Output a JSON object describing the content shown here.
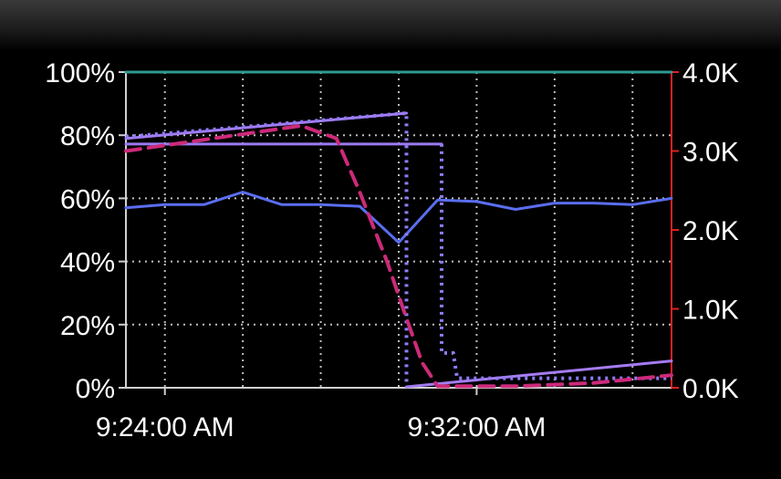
{
  "chart_data": {
    "type": "line",
    "title": "",
    "xlabel": "",
    "ylabel_left": "",
    "ylabel_right": "",
    "x_tick_labels": [
      "9:24:00 AM",
      "9:32:00 AM"
    ],
    "y_left": {
      "min": 0,
      "max": 100,
      "tick_labels": [
        "100%",
        "80%",
        "60%",
        "40%",
        "20%",
        "0%"
      ],
      "tick_values": [
        100,
        80,
        60,
        40,
        20,
        0
      ]
    },
    "y_right": {
      "min": 0,
      "max": 4000,
      "tick_labels": [
        "4.0K",
        "3.0K",
        "2.0K",
        "1.0K",
        "0.0K"
      ],
      "tick_values": [
        4000,
        3000,
        2000,
        1000,
        0
      ]
    },
    "x_range_minutes": [
      0,
      14
    ],
    "grid": true,
    "legend": "none",
    "series": [
      {
        "axis": "left",
        "style": "solid",
        "color": "#2f9a8e",
        "width": 3,
        "points": [
          [
            0,
            100
          ],
          [
            14,
            100
          ]
        ]
      },
      {
        "axis": "left",
        "style": "solid",
        "color": "#5a6ef0",
        "width": 3,
        "points": [
          [
            0,
            57
          ],
          [
            1,
            58
          ],
          [
            2,
            58
          ],
          [
            3,
            62
          ],
          [
            4,
            58
          ],
          [
            5,
            58
          ],
          [
            6,
            57.5
          ],
          [
            7,
            46
          ],
          [
            8,
            59.5
          ],
          [
            9,
            59
          ],
          [
            10,
            56.5
          ],
          [
            11,
            58.5
          ],
          [
            12,
            58.5
          ],
          [
            13,
            58
          ],
          [
            14,
            60
          ]
        ]
      },
      {
        "axis": "left",
        "style": "solid",
        "color": "#a57cf5",
        "width": 3,
        "points": [
          [
            0,
            79
          ],
          [
            7.2,
            87
          ]
        ]
      },
      {
        "axis": "left",
        "style": "solid",
        "color": "#a57cf5",
        "width": 3,
        "points": [
          [
            7.2,
            0.3
          ],
          [
            14,
            8.5
          ]
        ]
      },
      {
        "axis": "left",
        "style": "solid",
        "color": "#9b7af2",
        "width": 3,
        "points": [
          [
            0,
            77.2
          ],
          [
            8.1,
            77.2
          ]
        ]
      },
      {
        "axis": "left",
        "style": "dotted",
        "color": "#8e7cf5",
        "width": 4,
        "points": [
          [
            0,
            79.5
          ],
          [
            7.2,
            87
          ],
          [
            7.2,
            3
          ],
          [
            7.2,
            0.5
          ]
        ]
      },
      {
        "axis": "left",
        "style": "dotted",
        "color": "#8e7cf5",
        "width": 4,
        "points": [
          [
            8.1,
            77.2
          ],
          [
            8.1,
            11
          ],
          [
            8.4,
            11
          ],
          [
            8.5,
            3
          ],
          [
            14,
            3
          ]
        ]
      },
      {
        "axis": "left",
        "style": "dashed",
        "color": "#cc2a7a",
        "width": 4,
        "points": [
          [
            0,
            75
          ],
          [
            4.5,
            83
          ],
          [
            5.4,
            79
          ],
          [
            6.0,
            62
          ],
          [
            6.7,
            40
          ],
          [
            7.2,
            22
          ],
          [
            7.6,
            8
          ],
          [
            8.0,
            0.5
          ],
          [
            10,
            0.5
          ],
          [
            12,
            1.5
          ],
          [
            14,
            4
          ]
        ]
      }
    ]
  }
}
